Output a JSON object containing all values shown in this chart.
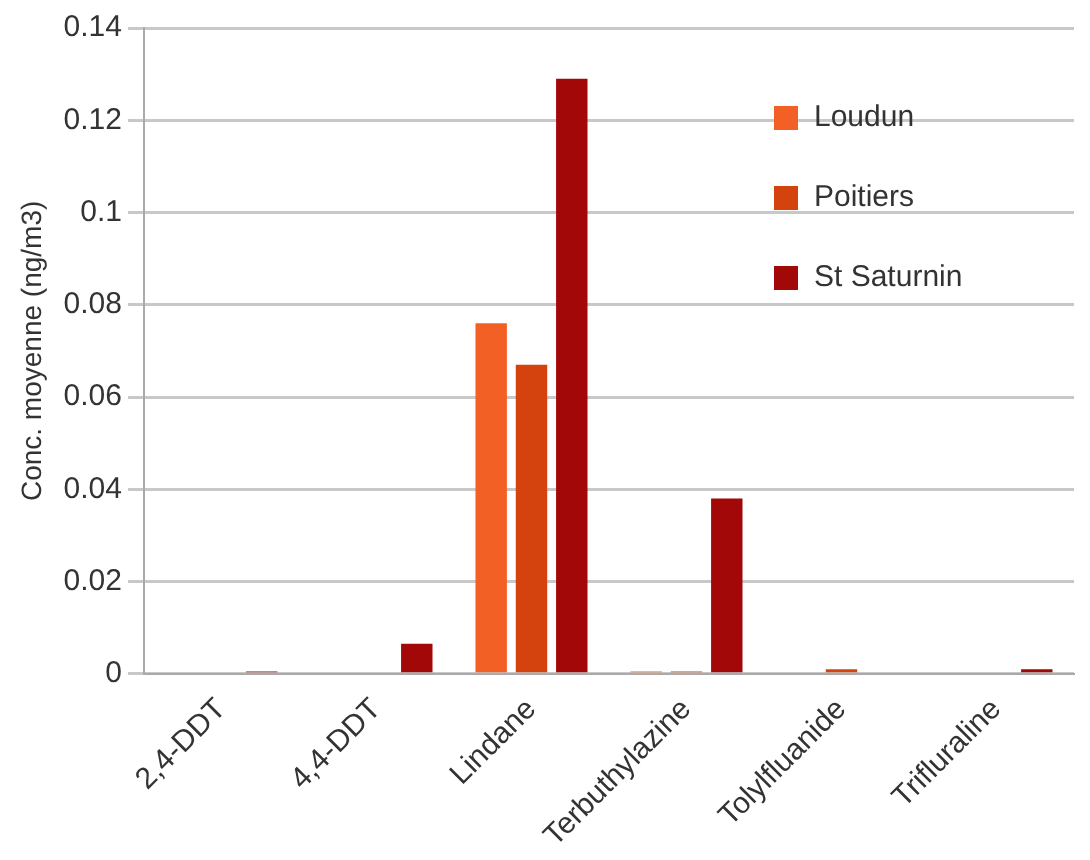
{
  "chart_data": {
    "type": "bar",
    "ylabel": "Conc. moyenne (ng/m3)",
    "categories": [
      "2,4-DDT",
      "4,4-DDT",
      "Lindane",
      "Terbuthylazine",
      "Tolylfluanide",
      "Trifluraline"
    ],
    "series": [
      {
        "name": "Loudun",
        "color": "#f26026",
        "values": [
          0,
          0,
          0.076,
          0.0005,
          0,
          0
        ]
      },
      {
        "name": "Poitiers",
        "color": "#d4420e",
        "values": [
          0,
          0,
          0.067,
          0.0005,
          0.001,
          0
        ]
      },
      {
        "name": "St Saturnin",
        "color": "#a30808",
        "values": [
          0.0005,
          0.0065,
          0.129,
          0.038,
          0,
          0.001
        ]
      }
    ],
    "ylim": [
      0,
      0.14
    ],
    "yticks": [
      0,
      0.02,
      0.04,
      0.06,
      0.08,
      0.1,
      0.12,
      0.14
    ],
    "grid": "y",
    "legend": "top right"
  }
}
